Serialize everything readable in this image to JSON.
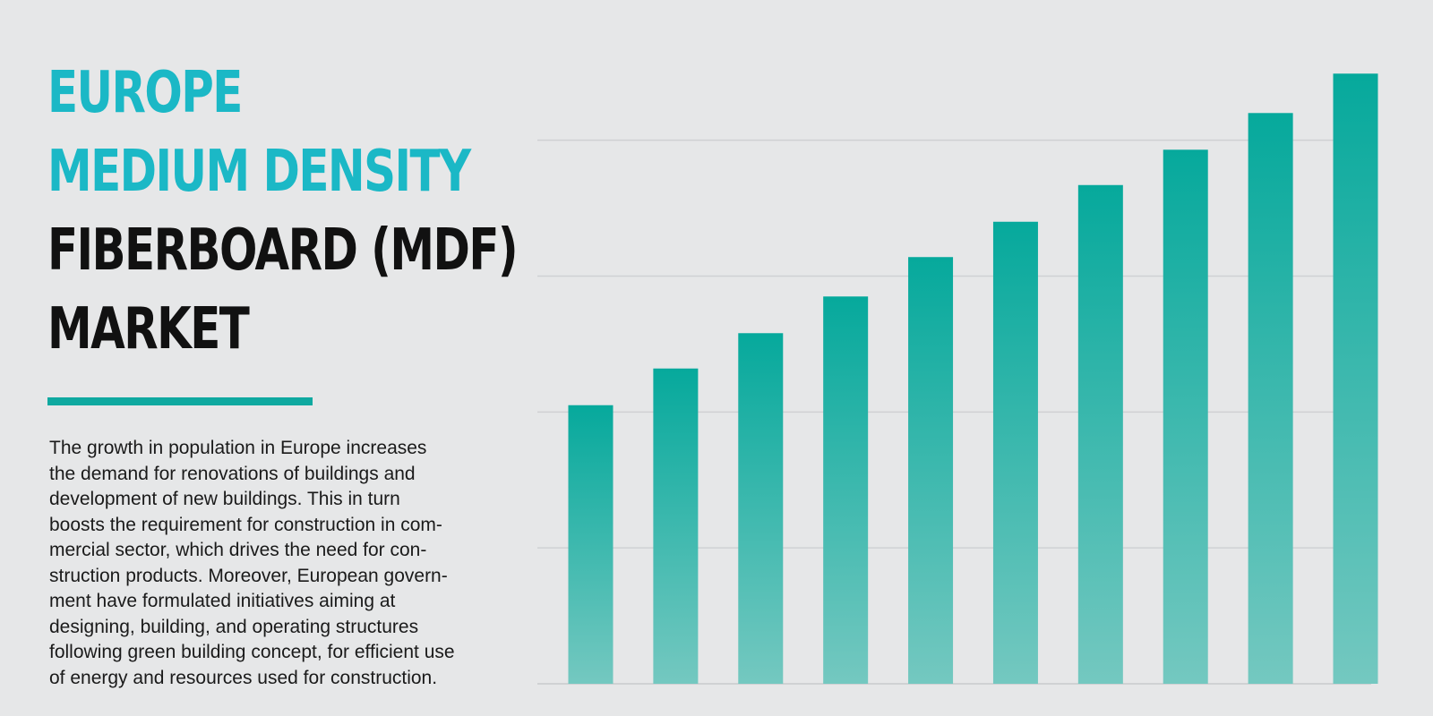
{
  "title": {
    "accent_lines": [
      "EUROPE",
      "MEDIUM DENSITY"
    ],
    "dark_lines": [
      "FIBERBOARD (MDF)",
      "MARKET"
    ]
  },
  "description": {
    "lines": [
      "The growth in population in Europe increases",
      "the demand for renovations of buildings and",
      "development of new buildings. This in turn",
      "boosts the requirement for construction in com-",
      "mercial sector, which drives the need for con-",
      "struction products. Moreover, European govern-",
      "ment have formulated initiatives aiming at",
      "designing, building, and operating structures",
      "following green building concept, for efficient use",
      "of energy and resources used for construction."
    ]
  },
  "colors": {
    "accent": "#1bb8c6",
    "rule": "#0fa9a0",
    "bar_top": "#06a99c",
    "bar_bottom": "#74c8c0",
    "grid": "#cfd1d3",
    "background": "#e6e7e8"
  },
  "chart_data": {
    "type": "bar",
    "values": [
      2.05,
      2.32,
      2.58,
      2.85,
      3.14,
      3.4,
      3.67,
      3.93,
      4.2,
      4.49
    ],
    "ylim": [
      0,
      4.9
    ],
    "gridlines": [
      1,
      2,
      3,
      4
    ],
    "grid": true,
    "x_labels_shown": false,
    "y_labels_shown": false
  }
}
